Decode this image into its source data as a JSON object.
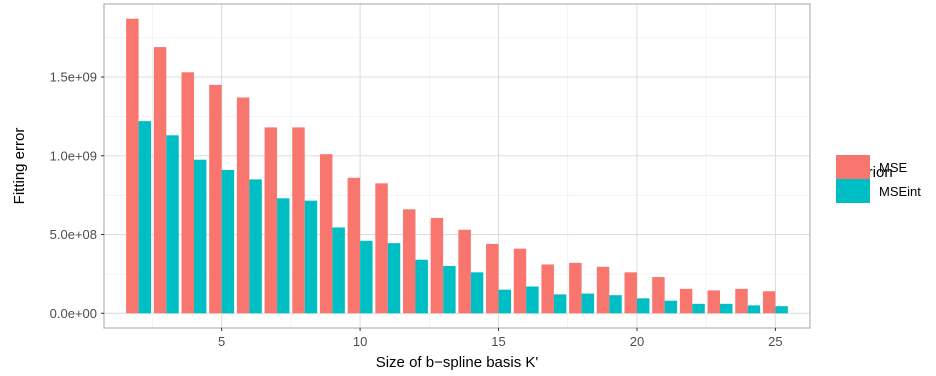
{
  "chart_data": {
    "type": "bar",
    "xlabel": "Size of b−spline basis K'",
    "ylabel": "Fitting error",
    "x": [
      2,
      3,
      4,
      5,
      6,
      7,
      8,
      9,
      10,
      11,
      12,
      13,
      14,
      15,
      16,
      17,
      18,
      19,
      20,
      21,
      22,
      23,
      24,
      25
    ],
    "series": [
      {
        "name": "MSE",
        "color": "#F8766D",
        "values": [
          1870000000.0,
          1690000000.0,
          1530000000.0,
          1450000000.0,
          1370000000.0,
          1180000000.0,
          1180000000.0,
          1010000000.0,
          860000000.0,
          825000000.0,
          660000000.0,
          605000000.0,
          530000000.0,
          440000000.0,
          410000000.0,
          310000000.0,
          320000000.0,
          295000000.0,
          260000000.0,
          230000000.0,
          155000000.0,
          145000000.0,
          155000000.0,
          140000000.0
        ]
      },
      {
        "name": "MSEint",
        "color": "#00BFC4",
        "values": [
          1220000000.0,
          1130000000.0,
          975000000.0,
          910000000.0,
          850000000.0,
          730000000.0,
          715000000.0,
          545000000.0,
          460000000.0,
          445000000.0,
          340000000.0,
          300000000.0,
          260000000.0,
          150000000.0,
          170000000.0,
          120000000.0,
          125000000.0,
          115000000.0,
          95000000.0,
          80000000.0,
          60000000.0,
          60000000.0,
          50000000.0,
          45000000.0
        ]
      }
    ],
    "xticks": [
      5,
      10,
      15,
      20,
      25
    ],
    "xtick_labels": [
      "5",
      "10",
      "15",
      "20",
      "25"
    ],
    "yticks": [
      0,
      500000000,
      1000000000,
      1500000000
    ],
    "ytick_labels": [
      "0.0e+00",
      "5.0e+08",
      "1.0e+09",
      "1.5e+09"
    ],
    "xlim": [
      0.75,
      26.25
    ],
    "ylim": [
      -93500000,
      1963500000
    ],
    "grid": true,
    "legend": {
      "title": "Criterion",
      "position": "right"
    }
  }
}
